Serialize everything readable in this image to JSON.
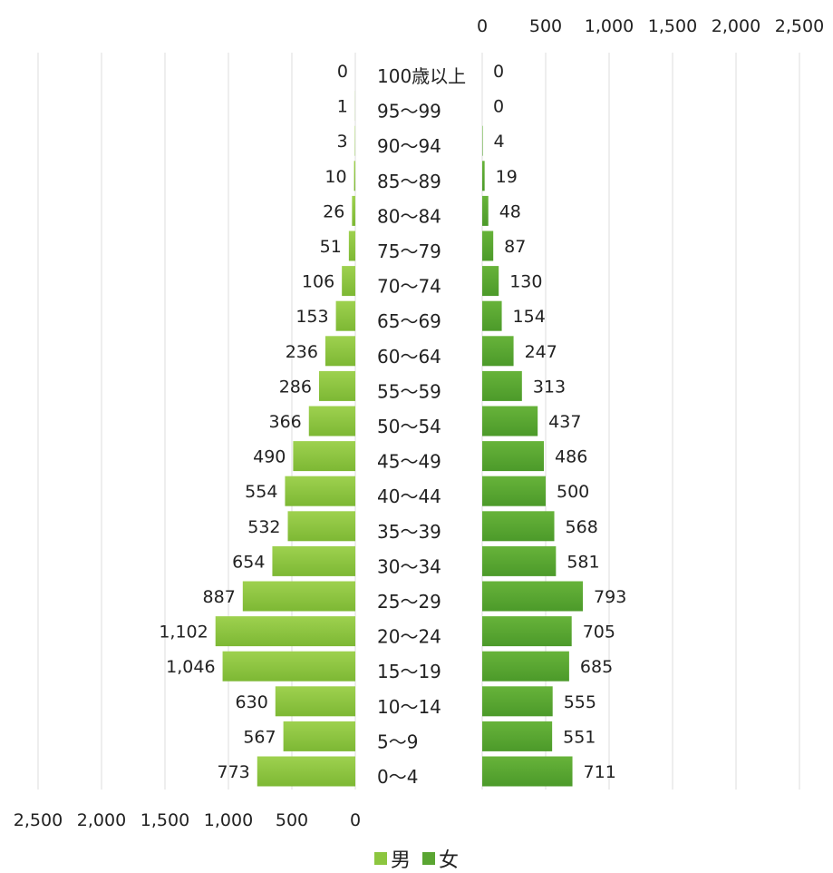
{
  "chart_data": {
    "type": "bar",
    "orientation": "horizontal-butterfly",
    "categories": [
      "0～4",
      "5～9",
      "10～14",
      "15～19",
      "20～24",
      "25～29",
      "30～34",
      "35～39",
      "40～44",
      "45～49",
      "50～54",
      "55～59",
      "60～64",
      "65～69",
      "70～74",
      "75～79",
      "80～84",
      "85～89",
      "90～94",
      "95～99",
      "100歳以上"
    ],
    "category_labels": [
      "0～4",
      "5～9",
      "10～14",
      "15～19",
      "20～24",
      "25～29",
      "30～34",
      "35～39",
      "40～44",
      "45～49",
      "50～54",
      "55～59",
      "60～64",
      "65～69",
      "70～74",
      "75～79",
      "80～84",
      "85～89",
      "90～94",
      "95～99",
      "100歳以上"
    ],
    "series": [
      {
        "name": "男",
        "color": "#8cc63f",
        "values": [
          773,
          567,
          630,
          1046,
          1102,
          887,
          654,
          532,
          554,
          490,
          366,
          286,
          236,
          153,
          106,
          51,
          26,
          10,
          3,
          1,
          0
        ],
        "labels": [
          "773",
          "567",
          "630",
          "1,046",
          "1,102",
          "887",
          "654",
          "532",
          "554",
          "490",
          "366",
          "286",
          "236",
          "153",
          "106",
          "51",
          "26",
          "10",
          "3",
          "1",
          "0"
        ]
      },
      {
        "name": "女",
        "color": "#5aa532",
        "values": [
          711,
          551,
          555,
          685,
          705,
          793,
          581,
          568,
          500,
          486,
          437,
          313,
          247,
          154,
          130,
          87,
          48,
          19,
          4,
          0,
          0
        ],
        "labels": [
          "711",
          "551",
          "555",
          "685",
          "705",
          "793",
          "581",
          "568",
          "500",
          "486",
          "437",
          "313",
          "247",
          "154",
          "130",
          "87",
          "48",
          "19",
          "4",
          "0",
          "0"
        ]
      }
    ],
    "left_axis": {
      "range": [
        0,
        2500
      ],
      "ticks": [
        0,
        500,
        1000,
        1500,
        2000,
        2500
      ],
      "tick_labels": [
        "0",
        "500",
        "1,000",
        "1,500",
        "2,000",
        "2,500"
      ],
      "position": "bottom"
    },
    "right_axis": {
      "range": [
        0,
        2500
      ],
      "ticks": [
        0,
        500,
        1000,
        1500,
        2000,
        2500
      ],
      "tick_labels": [
        "0",
        "500",
        "1,000",
        "1,500",
        "2,000",
        "2,500"
      ],
      "position": "top"
    },
    "grid": true,
    "legend": "bottom-center"
  }
}
